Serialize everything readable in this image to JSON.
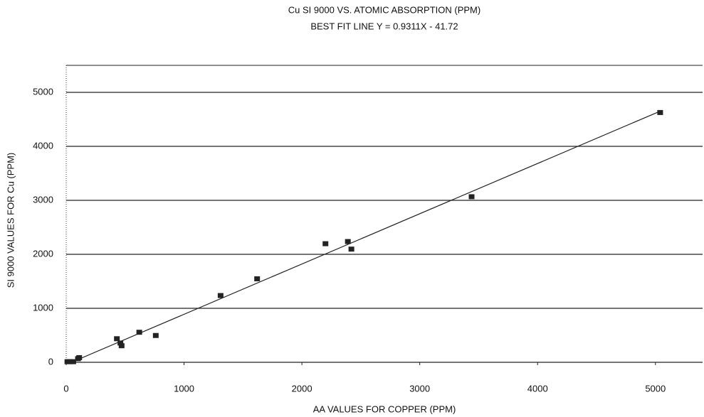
{
  "chart_data": {
    "type": "scatter",
    "title": "Cu SI 9000 VS. ATOMIC ABSORPTION (PPM)",
    "subtitle": "BEST FIT LINE  Y =  0.9311X - 41.72",
    "x_label": "AA VALUES FOR COPPER (PPM)",
    "y_label": "SI 9000 VALUES FOR Cu (PPM)",
    "series": [
      {
        "color": "#222222",
        "x": [
          10,
          30,
          60,
          100,
          110,
          430,
          460,
          470,
          620,
          760,
          1310,
          1620,
          2200,
          2390,
          2420,
          3440,
          5040
        ],
        "values": [
          5,
          5,
          5,
          60,
          80,
          430,
          350,
          300,
          550,
          490,
          1230,
          1540,
          2190,
          2230,
          2090,
          3060,
          4620
        ]
      }
    ],
    "fit_line": {
      "x": [
        45,
        5040
      ],
      "values": [
        0,
        4651
      ]
    },
    "xlim": [
      0,
      5400
    ],
    "ylim": [
      0,
      5500
    ],
    "xticks": [
      0,
      1000,
      2000,
      3000,
      4000,
      5000
    ],
    "yticks": [
      0,
      1000,
      2000,
      3000,
      4000,
      5000
    ],
    "grid": true
  }
}
